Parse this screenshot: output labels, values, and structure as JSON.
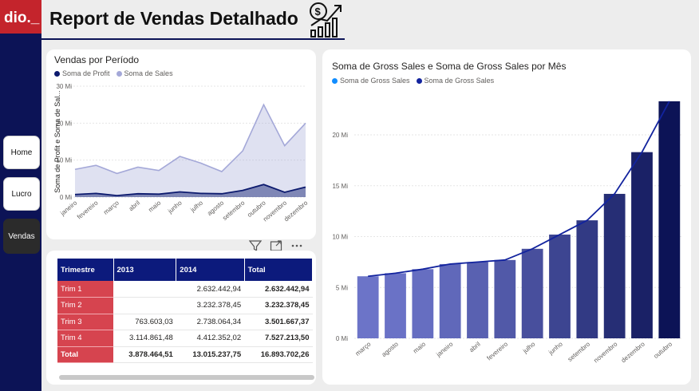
{
  "header": {
    "title": "Report de Vendas Detalhado"
  },
  "logo": {
    "text": "dio._"
  },
  "sidebar": {
    "items": [
      {
        "label": "Home"
      },
      {
        "label": "Lucro"
      },
      {
        "label": "Vendas"
      }
    ]
  },
  "period_chart": {
    "title": "Vendas por Período",
    "legend": [
      "Soma de Profit",
      "Soma de  Sales"
    ],
    "y_axis_title": "Soma de Profit e Soma de Sal...",
    "y_ticks": [
      "0 Mi",
      "10 Mi",
      "20 Mi",
      "30 Mi"
    ]
  },
  "monthly_chart": {
    "title": "Soma de Gross Sales e Soma de Gross Sales por Mês",
    "legend": [
      "Soma de Gross Sales",
      "Soma de Gross Sales"
    ],
    "y_ticks": [
      "0 Mi",
      "5 Mi",
      "10 Mi",
      "15 Mi",
      "20 Mi"
    ]
  },
  "matrix": {
    "headers": [
      "Trimestre",
      "2013",
      "2014",
      "Total"
    ],
    "rows": [
      {
        "label": "Trim 1",
        "y2013": "",
        "y2014": "2.632.442,94",
        "total": "2.632.442,94"
      },
      {
        "label": "Trim 2",
        "y2013": "",
        "y2014": "3.232.378,45",
        "total": "3.232.378,45"
      },
      {
        "label": "Trim 3",
        "y2013": "763.603,03",
        "y2014": "2.738.064,34",
        "total": "3.501.667,37"
      },
      {
        "label": "Trim 4",
        "y2013": "3.114.861,48",
        "y2014": "4.412.352,02",
        "total": "7.527.213,50"
      }
    ],
    "total_row": {
      "label": "Total",
      "y2013": "3.878.464,51",
      "y2014": "13.015.237,75",
      "total": "16.893.702,26"
    }
  },
  "chart_data": [
    {
      "type": "area",
      "title": "Vendas por Período",
      "ylabel": "Soma de Profit e Soma de Sal...",
      "x": [
        "janeiro",
        "fevereiro",
        "março",
        "abril",
        "maio",
        "junho",
        "julho",
        "agosto",
        "setembro",
        "outubro",
        "novembro",
        "dezembro"
      ],
      "ylim": [
        0,
        30
      ],
      "series": [
        {
          "name": "Soma de  Sales",
          "color": "#a4a8d8",
          "values": [
            7.5,
            8.6,
            6.4,
            8.1,
            7.2,
            11.0,
            9.2,
            6.9,
            12.5,
            25.0,
            13.9,
            20.0
          ]
        },
        {
          "name": "Soma de Profit",
          "color": "#0c1a6e",
          "values": [
            0.7,
            1.0,
            0.4,
            0.9,
            0.8,
            1.4,
            1.0,
            0.9,
            1.8,
            3.4,
            1.3,
            2.7
          ]
        }
      ]
    },
    {
      "type": "bar",
      "title": "Soma de Gross Sales e Soma de Gross Sales por Mês",
      "categories": [
        "março",
        "agosto",
        "maio",
        "janeiro",
        "abril",
        "fevereiro",
        "julho",
        "junho",
        "setembro",
        "novembro",
        "dezembro",
        "outubro"
      ],
      "ylim": [
        0,
        24
      ],
      "series": [
        {
          "name": "Soma de Gross Sales",
          "kind": "bar",
          "color": "#118dff",
          "values": [
            6.1,
            6.4,
            6.8,
            7.3,
            7.5,
            7.7,
            8.8,
            10.2,
            11.6,
            14.2,
            18.3,
            23.3
          ]
        },
        {
          "name": "Soma de Gross Sales",
          "kind": "line",
          "color": "#12239e",
          "values": [
            6.1,
            6.4,
            6.8,
            7.3,
            7.5,
            7.7,
            8.8,
            10.2,
            11.6,
            14.2,
            18.3,
            23.3
          ]
        }
      ]
    }
  ]
}
